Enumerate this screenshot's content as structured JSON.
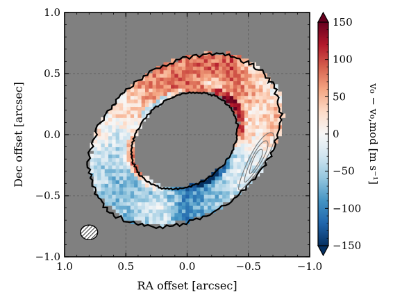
{
  "chart_data": {
    "type": "heatmap",
    "title": "",
    "xlabel": "RA offset [arcsec]",
    "ylabel": "Dec offset [arcsec]",
    "xlim": [
      1.0,
      -1.0
    ],
    "ylim": [
      -1.0,
      1.0
    ],
    "xticks": [
      1.0,
      0.5,
      0.0,
      -0.5,
      -1.0
    ],
    "yticks": [
      -1.0,
      -0.5,
      0.0,
      0.5,
      1.0
    ],
    "xtick_labels": [
      "1.0",
      "0.5",
      "0.0",
      "−0.5",
      "−1.0"
    ],
    "ytick_labels": [
      "−1.0",
      "−0.5",
      "0.0",
      "0.5",
      "1.0"
    ],
    "grid": true,
    "background_color": "#808080",
    "colormap": "RdBu_r",
    "colorbar": {
      "label": "v₀ − v₀,mod   [m s⁻¹]",
      "range": [
        -150,
        150
      ],
      "ticks": [
        150,
        100,
        50,
        0,
        -50,
        -100,
        -150
      ],
      "tick_labels": [
        "150",
        "100",
        "50",
        "0",
        "−50",
        "−100",
        "−150"
      ],
      "extend": "both",
      "low_color": "#053061",
      "mid_color": "#f7f7f7",
      "high_color": "#67001f"
    },
    "ring": {
      "center": [
        0.02,
        -0.05
      ],
      "outer_semi_axes": [
        0.85,
        0.62
      ],
      "inner_semi_axes": [
        0.46,
        0.36
      ],
      "position_angle_deg": 35
    },
    "beam": {
      "center": [
        0.8,
        -0.8
      ],
      "semi_axes": [
        0.07,
        0.06
      ],
      "hatched": true
    },
    "contours": "grey residual contours near RA −0.55, Dec −0.25"
  }
}
